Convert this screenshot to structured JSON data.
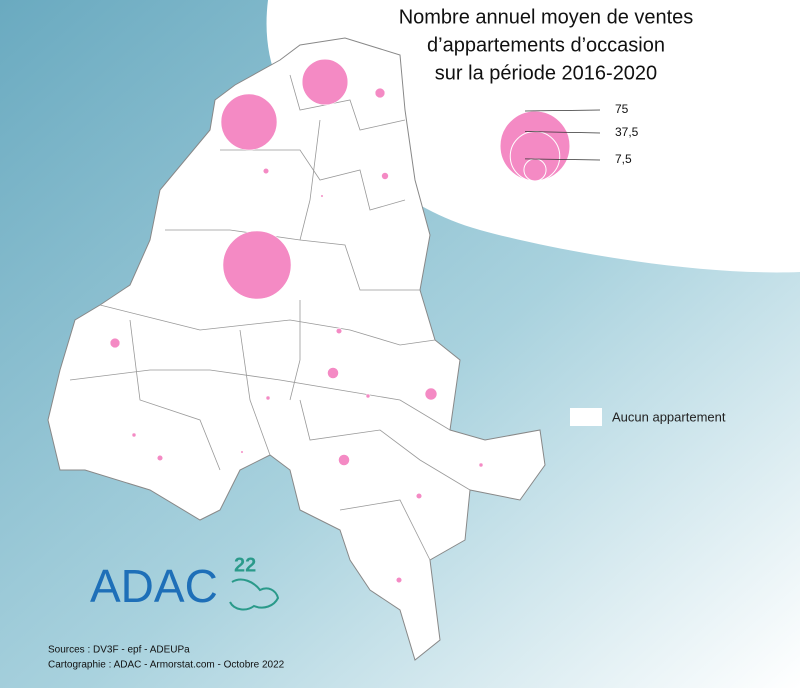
{
  "title_lines": [
    "Nombre annuel moyen de ventes",
    "d’appartements d’occasion",
    "sur la période 2016-2020"
  ],
  "color": "#f48ac4",
  "legend": {
    "sizes": [
      75,
      {
        "value": 37.5,
        "label": "37,5"
      },
      {
        "value": 7.5,
        "label": "7,5"
      }
    ],
    "none_label": "Aucun appartement"
  },
  "circle_values": [
    32,
    48,
    71,
    1.5,
    0.5,
    0.75,
    0.1,
    1.5,
    0.5,
    1.9,
    2.2,
    0.25,
    0.25,
    1.9,
    0.5,
    0.25,
    0.25,
    0.5,
    0.1,
    0.5
  ],
  "logo": {
    "name": "ADAC",
    "number": "22"
  },
  "sources": [
    "Sources : DV3F - epf - ADEUPa",
    "Cartographie : ADAC - Armorstat.com - Octobre 2022"
  ]
}
